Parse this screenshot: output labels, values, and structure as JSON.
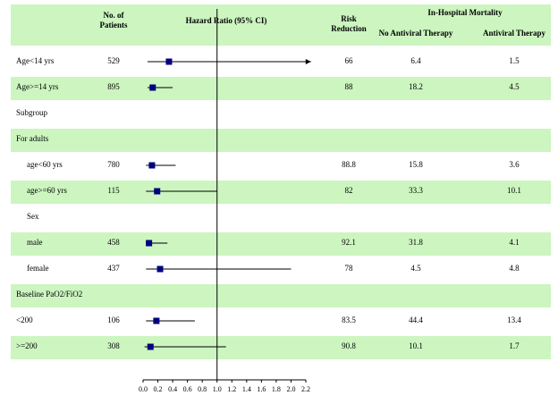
{
  "chart_data": {
    "type": "forest",
    "headers": {
      "patients": [
        "No. of",
        "Patients"
      ],
      "hazard_ratio": "Hazard Ratio (95% CI)",
      "risk_reduction": [
        "Risk",
        "Reduction"
      ],
      "mortality": "In-Hospital Mortality",
      "no_antiviral": "No Antiviral Therapy",
      "antiviral": "Antiviral Therapy"
    },
    "band_color": "#ccf5c0",
    "marker_color": "#000080",
    "reference_line": 1,
    "xlim": [
      0,
      2.2
    ],
    "xticks": [
      {
        "value": 0,
        "label": "0.0"
      },
      0.2,
      0.4,
      0.6,
      0.8,
      {
        "value": 1,
        "label": "1.0"
      },
      1.2,
      1.4,
      1.6,
      1.8,
      {
        "value": 2,
        "label": "2.0"
      },
      2.2
    ],
    "rows": [
      {
        "label": "Age<14 yrs",
        "indent": false,
        "patients": 529,
        "hr": 0.35,
        "lo": 0.06,
        "hi": 2.27,
        "risk_reduction": 66,
        "no_antiviral": 6.4,
        "antiviral": 1.5
      },
      {
        "label": "Age>=14 yrs",
        "indent": false,
        "patients": 895,
        "hr": 0.13,
        "lo": 0.06,
        "hi": 0.4,
        "risk_reduction": 88,
        "no_antiviral": 18.2,
        "antiviral": 4.5
      },
      {
        "label": "Subgroup",
        "indent": false
      },
      {
        "label": "For adults",
        "indent": false
      },
      {
        "label": "age<60 yrs",
        "indent": true,
        "patients": 780,
        "hr": 0.12,
        "lo": 0.04,
        "hi": 0.44,
        "risk_reduction": 88.8,
        "no_antiviral": 15.8,
        "antiviral": 3.6
      },
      {
        "label": "age>=60 yrs",
        "indent": true,
        "patients": 115,
        "hr": 0.19,
        "lo": 0.04,
        "hi": 1.0,
        "risk_reduction": 82,
        "no_antiviral": 33.3,
        "antiviral": 10.1
      },
      {
        "label": "Sex",
        "indent": true
      },
      {
        "label": "male",
        "indent": true,
        "patients": 458,
        "hr": 0.08,
        "lo": 0.04,
        "hi": 0.33,
        "risk_reduction": 92.1,
        "no_antiviral": 31.8,
        "antiviral": 4.1
      },
      {
        "label": "female",
        "indent": true,
        "patients": 437,
        "hr": 0.23,
        "lo": 0.04,
        "hi": 2.0,
        "risk_reduction": 78,
        "no_antiviral": 4.5,
        "antiviral": 4.8
      },
      {
        "label": "Baseline PaO2/FiO2",
        "indent": false
      },
      {
        "label": "<200",
        "indent": false,
        "patients": 106,
        "hr": 0.18,
        "lo": 0.04,
        "hi": 0.7,
        "risk_reduction": 83.5,
        "no_antiviral": 44.4,
        "antiviral": 13.4
      },
      {
        "label": ">=200",
        "indent": false,
        "patients": 308,
        "hr": 0.1,
        "lo": 0.02,
        "hi": 1.12,
        "risk_reduction": 90.8,
        "no_antiviral": 10.1,
        "antiviral": 1.7
      }
    ]
  }
}
